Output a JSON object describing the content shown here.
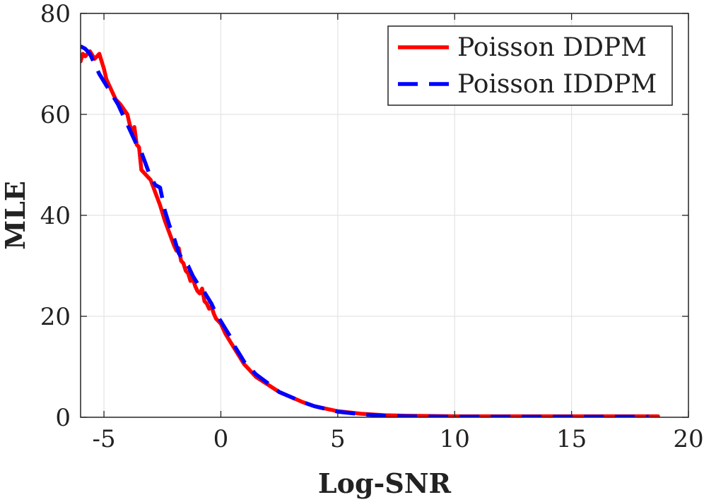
{
  "chart_data": {
    "type": "line",
    "title": "",
    "xlabel": "Log-SNR",
    "ylabel": "MLE",
    "xlim": [
      -6,
      20
    ],
    "ylim": [
      0,
      80
    ],
    "xticks": [
      -5,
      0,
      5,
      10,
      15,
      20
    ],
    "yticks": [
      0,
      20,
      40,
      60,
      80
    ],
    "xtick_labels": [
      "-5",
      "0",
      "5",
      "10",
      "15",
      "20"
    ],
    "ytick_labels": [
      "0",
      "20",
      "40",
      "60",
      "80"
    ],
    "grid": true,
    "legend_position": "top-right",
    "series": [
      {
        "name": "Poisson DDPM",
        "color": "#ff0000",
        "style": "solid",
        "x": [
          -6.0,
          -5.9,
          -5.8,
          -5.6,
          -5.4,
          -5.2,
          -5.0,
          -4.9,
          -4.8,
          -4.7,
          -4.5,
          -4.3,
          -4.0,
          -3.9,
          -3.8,
          -3.7,
          -3.6,
          -3.5,
          -3.4,
          -3.2,
          -3.1,
          -3.0,
          -2.8,
          -2.6,
          -2.4,
          -2.2,
          -2.0,
          -1.9,
          -1.8,
          -1.7,
          -1.6,
          -1.5,
          -1.4,
          -1.3,
          -1.2,
          -1.1,
          -1.0,
          -0.9,
          -0.8,
          -0.7,
          -0.6,
          -0.5,
          -0.4,
          -0.3,
          -0.2,
          -0.1,
          0.0,
          0.2,
          0.4,
          0.6,
          0.8,
          1.0,
          1.5,
          2.0,
          2.5,
          3.0,
          3.5,
          4.0,
          5.0,
          6.0,
          7.0,
          8.0,
          10.0,
          12.0,
          15.0,
          18.7
        ],
        "y": [
          70.5,
          72.0,
          71.5,
          72.5,
          71.0,
          72.0,
          69.0,
          67.0,
          66.0,
          65.0,
          63.0,
          62.0,
          60.0,
          58.0,
          56.5,
          57.5,
          54.0,
          53.5,
          49.0,
          48.0,
          47.5,
          47.0,
          44.5,
          42.0,
          39.0,
          36.5,
          34.0,
          33.0,
          33.5,
          31.0,
          30.5,
          29.0,
          28.5,
          27.0,
          27.5,
          26.0,
          25.0,
          24.5,
          25.5,
          23.0,
          22.5,
          21.5,
          22.0,
          20.5,
          19.5,
          19.0,
          18.5,
          16.5,
          15.0,
          13.5,
          12.0,
          10.5,
          8.0,
          6.5,
          5.0,
          4.0,
          3.0,
          2.2,
          1.2,
          0.7,
          0.4,
          0.3,
          0.2,
          0.2,
          0.2,
          0.2
        ]
      },
      {
        "name": "Poisson IDDPM",
        "color": "#0000ff",
        "style": "dashed",
        "x": [
          -6.0,
          -5.8,
          -5.6,
          -5.4,
          -5.2,
          -5.0,
          -4.8,
          -4.6,
          -4.4,
          -4.2,
          -4.0,
          -3.8,
          -3.6,
          -3.4,
          -3.2,
          -3.0,
          -2.8,
          -2.6,
          -2.4,
          -2.2,
          -2.0,
          -1.8,
          -1.6,
          -1.4,
          -1.2,
          -1.0,
          -0.8,
          -0.6,
          -0.4,
          -0.2,
          0.0,
          0.2,
          0.4,
          0.6,
          0.8,
          1.0,
          1.5,
          2.0,
          2.5,
          3.0,
          3.5,
          4.0,
          5.0,
          6.0,
          7.0,
          8.0,
          10.0,
          12.0,
          15.0,
          18.3
        ],
        "y": [
          73.5,
          73.0,
          72.0,
          70.0,
          68.0,
          66.5,
          65.0,
          63.5,
          62.0,
          60.0,
          58.0,
          56.0,
          54.0,
          52.5,
          50.0,
          47.5,
          46.0,
          45.5,
          41.0,
          38.0,
          35.5,
          32.5,
          31.0,
          30.0,
          28.0,
          26.5,
          25.5,
          24.0,
          22.5,
          20.5,
          19.0,
          17.5,
          16.0,
          14.0,
          12.5,
          11.0,
          8.5,
          6.8,
          5.0,
          4.0,
          3.0,
          2.2,
          1.1,
          0.6,
          0.3,
          0.2,
          0.1,
          0.1,
          0.1,
          0.1
        ]
      }
    ]
  }
}
